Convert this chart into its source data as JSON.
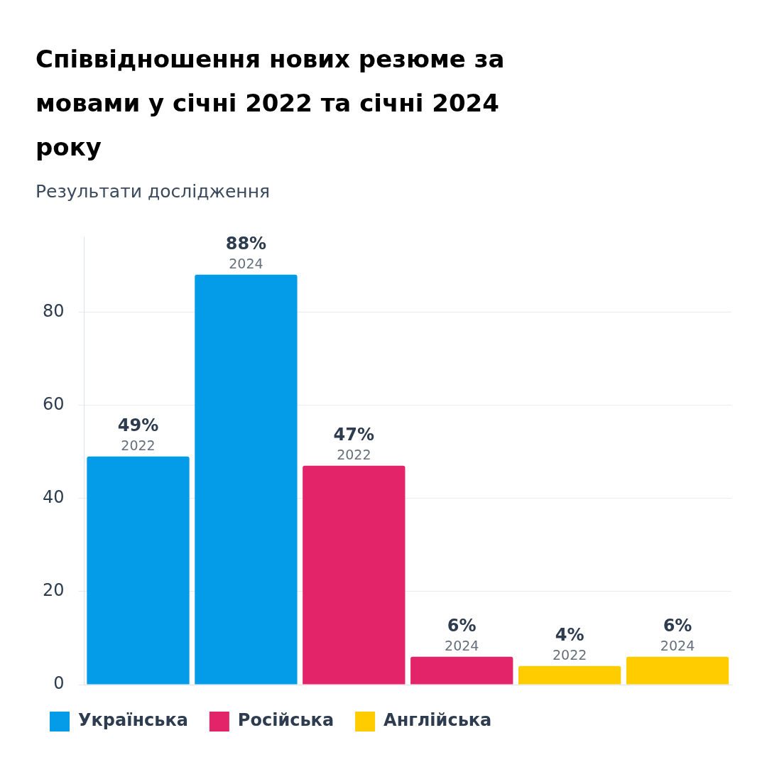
{
  "chart_data": {
    "type": "bar",
    "title": "Співвідношення нових резюме за мовами у січні 2022 та січні 2024 року",
    "subtitle": "Результати дослідження",
    "categories": [
      "2022",
      "2024",
      "2022",
      "2024",
      "2022",
      "2024"
    ],
    "series": [
      {
        "name": "Українська",
        "color": "#049be8",
        "values": [
          49,
          88,
          null,
          null,
          null,
          null
        ],
        "value_labels": [
          "49%",
          "88%",
          null,
          null,
          null,
          null
        ]
      },
      {
        "name": "Російська",
        "color": "#e32468",
        "values": [
          null,
          null,
          47,
          6,
          null,
          null
        ],
        "value_labels": [
          null,
          null,
          "47%",
          "6%",
          null,
          null
        ]
      },
      {
        "name": "Англійська",
        "color": "#ffcc00",
        "values": [
          null,
          null,
          null,
          null,
          4,
          6
        ],
        "value_labels": [
          null,
          null,
          null,
          null,
          "4%",
          "6%"
        ]
      }
    ],
    "ylim": [
      0,
      96
    ],
    "yticks": [
      0,
      20,
      40,
      60,
      80
    ],
    "grid": "y",
    "legend": "bottom"
  }
}
